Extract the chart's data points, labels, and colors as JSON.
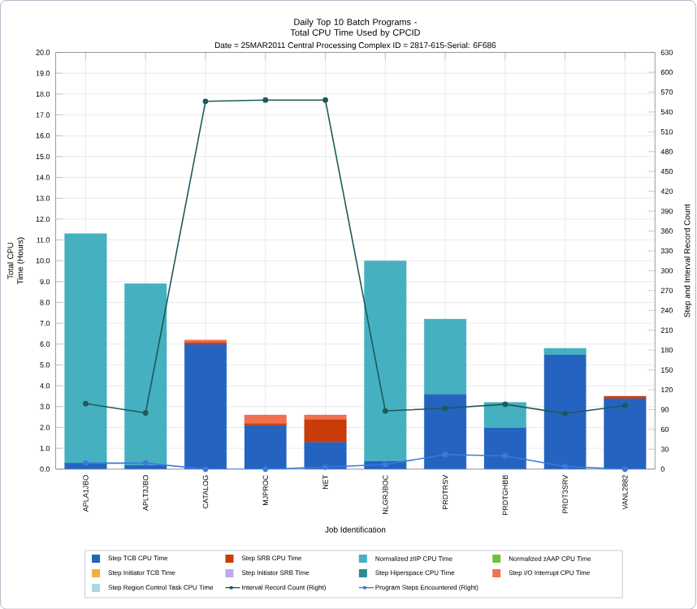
{
  "chart_data": {
    "type": "bar",
    "stacked": true,
    "title": "Daily Top 10 Batch Programs - Total CPU Time Used by CPCID",
    "subtitle": "Date = 25MAR2011  Central Processing Complex ID = 2817-615-Serial: 6F686",
    "xlabel": "Job Identification",
    "ylabel": "Total CPU Time (Hours)",
    "y2label": "Step and Interval Record Count",
    "categories": [
      "APLA1JBO",
      "APLT3JBO",
      "CATALOG",
      "MJPROC",
      "NET",
      "NLGRJBOC",
      "PRDTRSV",
      "PRDTGHBB",
      "PRDT3SRV",
      "VANL2882"
    ],
    "series": [
      {
        "name": "Step TCB CPU Time",
        "color": "#2563c0",
        "values": [
          0.3,
          0.2,
          6.0,
          2.1,
          1.3,
          0.4,
          3.6,
          2.0,
          5.5,
          3.4
        ]
      },
      {
        "name": "Step SRB CPU Time",
        "color": "#c83c0a",
        "values": [
          null,
          null,
          0.1,
          0.1,
          1.1,
          null,
          null,
          null,
          null,
          0.1
        ]
      },
      {
        "name": "Normalized zIIP CPU Time",
        "color": "#45b0c0",
        "values": [
          11.0,
          8.7,
          null,
          null,
          null,
          9.6,
          3.6,
          1.2,
          0.3,
          null
        ]
      },
      {
        "name": "Normalized zAAP CPU Time",
        "color": "#70c040",
        "values": [
          null,
          null,
          null,
          null,
          null,
          null,
          null,
          null,
          null,
          null
        ]
      },
      {
        "name": "Step Initiator TCB Time",
        "color": "#f0b040",
        "values": [
          null,
          null,
          null,
          null,
          null,
          null,
          null,
          null,
          null,
          null
        ]
      },
      {
        "name": "Step Initiator SRB Time",
        "color": "#c0a8f0",
        "values": [
          null,
          null,
          null,
          null,
          null,
          null,
          null,
          null,
          null,
          null
        ]
      },
      {
        "name": "Step Hiperspace CPU Time",
        "color": "#2a8c98",
        "values": [
          null,
          null,
          null,
          null,
          null,
          null,
          null,
          null,
          null,
          null
        ]
      },
      {
        "name": "Step I/O Interrupt CPU Time",
        "color": "#f07050",
        "values": [
          null,
          null,
          0.1,
          0.4,
          0.2,
          null,
          null,
          null,
          null,
          null
        ]
      },
      {
        "name": "Step Region Control Task CPU Time",
        "color": "#a8d8e0",
        "values": [
          null,
          null,
          null,
          null,
          null,
          null,
          null,
          null,
          null,
          null
        ]
      },
      {
        "name": "Interval Record Count (Right)",
        "type": "line",
        "axis": "y2",
        "color": "#1e5a5a",
        "values": [
          99,
          85,
          556,
          558,
          558,
          88,
          92,
          98,
          84,
          96
        ]
      },
      {
        "name": "Program Steps Encountered (Right)",
        "type": "line",
        "axis": "y2",
        "color": "#3a7ae0",
        "values": [
          9,
          9,
          0,
          0,
          3,
          7,
          22,
          20,
          4,
          0
        ]
      }
    ],
    "ylim": [
      0,
      20
    ],
    "yticks": [
      {
        "value": 0,
        "label": "0.0"
      },
      {
        "value": 1,
        "label": "1.0"
      },
      {
        "value": 2,
        "label": "2.0"
      },
      {
        "value": 3,
        "label": "3.0"
      },
      {
        "value": 4,
        "label": "4.0"
      },
      {
        "value": 5,
        "label": "5.0"
      },
      {
        "value": 6,
        "label": "6.0"
      },
      {
        "value": 7,
        "label": "7.0"
      },
      {
        "value": 8,
        "label": "8.0"
      },
      {
        "value": 9,
        "label": "9.0"
      },
      {
        "value": 10,
        "label": "10.0"
      },
      {
        "value": 11,
        "label": "11.0"
      },
      {
        "value": 12,
        "label": "12.0"
      },
      {
        "value": 13,
        "label": "13.0"
      },
      {
        "value": 14,
        "label": "14.0"
      },
      {
        "value": 15,
        "label": "15.0"
      },
      {
        "value": 16,
        "label": "16.0"
      },
      {
        "value": 17,
        "label": "17.0"
      },
      {
        "value": 18,
        "label": "18.0"
      },
      {
        "value": 19,
        "label": "19.0"
      },
      {
        "value": 20,
        "label": "20.0"
      }
    ],
    "y2lim": [
      0,
      630
    ],
    "y2ticks": [
      0,
      30,
      60,
      90,
      120,
      150,
      180,
      210,
      240,
      270,
      300,
      330,
      360,
      390,
      420,
      450,
      480,
      510,
      540,
      570,
      600,
      630
    ],
    "grid": true,
    "legend": "bottom",
    "marker": "circle"
  }
}
